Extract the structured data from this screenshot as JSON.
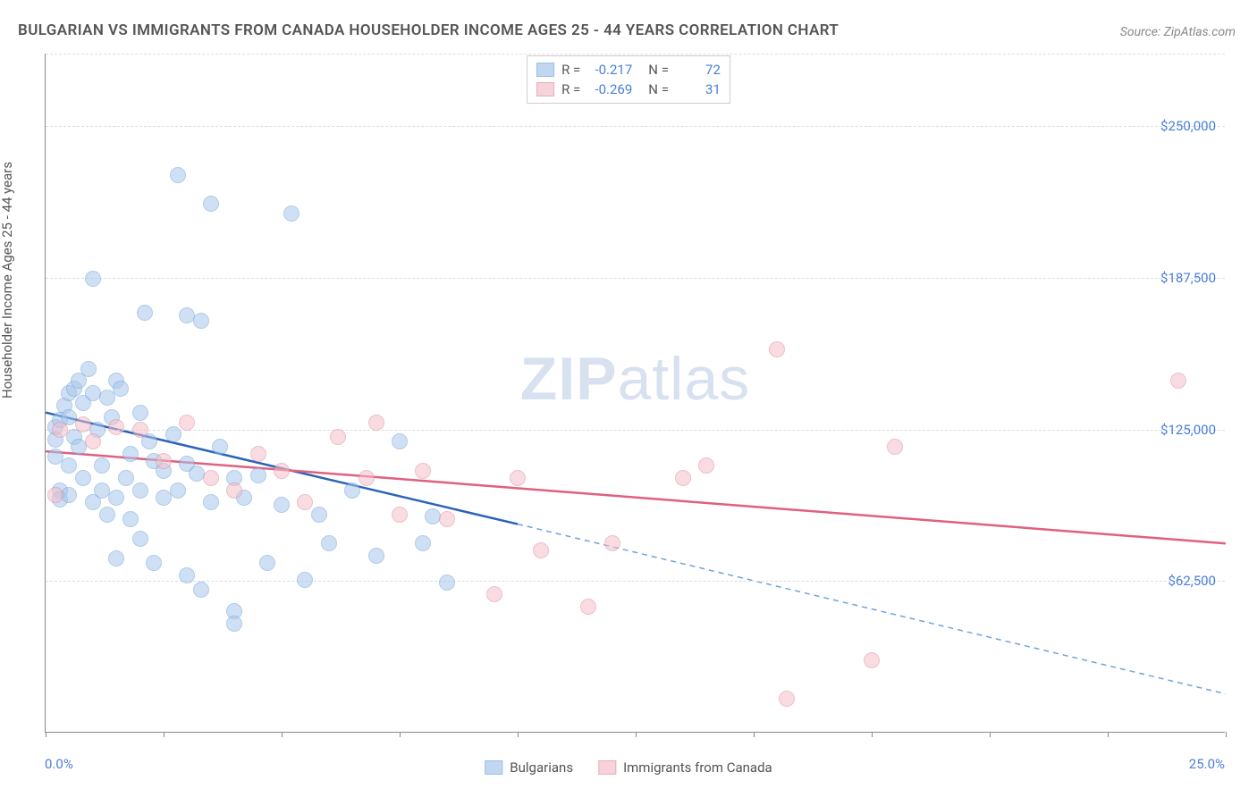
{
  "title": "BULGARIAN VS IMMIGRANTS FROM CANADA HOUSEHOLDER INCOME AGES 25 - 44 YEARS CORRELATION CHART",
  "source": "Source: ZipAtlas.com",
  "y_axis_title": "Householder Income Ages 25 - 44 years",
  "watermark_a": "ZIP",
  "watermark_b": "atlas",
  "chart": {
    "type": "scatter",
    "xlim": [
      0,
      25
    ],
    "ylim": [
      0,
      280000
    ],
    "x_tick_positions": [
      0,
      2.5,
      5,
      7.5,
      10,
      12.5,
      15,
      17.5,
      20,
      22.5,
      25
    ],
    "x_label_min": "0.0%",
    "x_label_max": "25.0%",
    "y_gridlines": [
      62500,
      125000,
      187500,
      250000
    ],
    "y_tick_labels": [
      "$62,500",
      "$125,000",
      "$187,500",
      "$250,000"
    ],
    "background_color": "#ffffff",
    "grid_color": "#dddddd",
    "axis_color": "#888888",
    "point_radius": 9,
    "point_stroke_width": 1.5,
    "series": [
      {
        "name": "Bulgarians",
        "fill": "#a8c7ec",
        "fill_opacity": 0.55,
        "stroke": "#6fa3dc",
        "r_value": "-0.217",
        "n_value": "72",
        "trend": {
          "solid": {
            "x1": 0,
            "y1": 132000,
            "x2": 10,
            "y2": 86000,
            "color": "#2a63b8",
            "width": 2.5
          },
          "dashed": {
            "x1": 10,
            "y1": 86000,
            "x2": 25,
            "y2": 16000,
            "color": "#6fa3dc",
            "width": 1.5,
            "dash": "6 5"
          }
        },
        "points": [
          [
            0.2,
            126000
          ],
          [
            0.2,
            121000
          ],
          [
            0.2,
            114000
          ],
          [
            0.3,
            129000
          ],
          [
            0.3,
            100000
          ],
          [
            0.3,
            96000
          ],
          [
            0.4,
            135000
          ],
          [
            0.5,
            140000
          ],
          [
            0.5,
            130000
          ],
          [
            0.5,
            110000
          ],
          [
            0.5,
            98000
          ],
          [
            0.6,
            142000
          ],
          [
            0.6,
            122000
          ],
          [
            0.7,
            145000
          ],
          [
            0.7,
            118000
          ],
          [
            0.8,
            136000
          ],
          [
            0.8,
            105000
          ],
          [
            0.9,
            150000
          ],
          [
            1.0,
            140000
          ],
          [
            1.0,
            187000
          ],
          [
            1.0,
            95000
          ],
          [
            1.1,
            125000
          ],
          [
            1.2,
            110000
          ],
          [
            1.2,
            100000
          ],
          [
            1.3,
            138000
          ],
          [
            1.3,
            90000
          ],
          [
            1.4,
            130000
          ],
          [
            1.5,
            145000
          ],
          [
            1.5,
            97000
          ],
          [
            1.5,
            72000
          ],
          [
            1.6,
            142000
          ],
          [
            1.7,
            105000
          ],
          [
            1.8,
            115000
          ],
          [
            1.8,
            88000
          ],
          [
            2.0,
            132000
          ],
          [
            2.0,
            100000
          ],
          [
            2.0,
            80000
          ],
          [
            2.1,
            173000
          ],
          [
            2.2,
            120000
          ],
          [
            2.3,
            112000
          ],
          [
            2.3,
            70000
          ],
          [
            2.5,
            108000
          ],
          [
            2.5,
            97000
          ],
          [
            2.7,
            123000
          ],
          [
            2.8,
            230000
          ],
          [
            2.8,
            100000
          ],
          [
            3.0,
            111000
          ],
          [
            3.0,
            172000
          ],
          [
            3.0,
            65000
          ],
          [
            3.2,
            107000
          ],
          [
            3.3,
            170000
          ],
          [
            3.3,
            59000
          ],
          [
            3.5,
            218000
          ],
          [
            3.5,
            95000
          ],
          [
            3.7,
            118000
          ],
          [
            4.0,
            105000
          ],
          [
            4.0,
            50000
          ],
          [
            4.0,
            45000
          ],
          [
            4.2,
            97000
          ],
          [
            4.5,
            106000
          ],
          [
            4.7,
            70000
          ],
          [
            5.0,
            94000
          ],
          [
            5.2,
            214000
          ],
          [
            5.5,
            63000
          ],
          [
            5.8,
            90000
          ],
          [
            6.0,
            78000
          ],
          [
            6.5,
            100000
          ],
          [
            7.0,
            73000
          ],
          [
            7.5,
            120000
          ],
          [
            8.0,
            78000
          ],
          [
            8.2,
            89000
          ],
          [
            8.5,
            62000
          ]
        ]
      },
      {
        "name": "Immigrants from Canada",
        "fill": "#f3c0cb",
        "fill_opacity": 0.55,
        "stroke": "#e38aa0",
        "r_value": "-0.269",
        "n_value": "31",
        "trend": {
          "solid": {
            "x1": 0,
            "y1": 116000,
            "x2": 25,
            "y2": 78000,
            "color": "#e0607f",
            "width": 2.5
          }
        },
        "points": [
          [
            0.2,
            98000
          ],
          [
            0.3,
            125000
          ],
          [
            0.8,
            127000
          ],
          [
            1.0,
            120000
          ],
          [
            1.5,
            126000
          ],
          [
            2.0,
            125000
          ],
          [
            2.5,
            112000
          ],
          [
            3.0,
            128000
          ],
          [
            3.5,
            105000
          ],
          [
            4.0,
            100000
          ],
          [
            4.5,
            115000
          ],
          [
            5.0,
            108000
          ],
          [
            5.5,
            95000
          ],
          [
            6.2,
            122000
          ],
          [
            6.8,
            105000
          ],
          [
            7.0,
            128000
          ],
          [
            7.5,
            90000
          ],
          [
            8.0,
            108000
          ],
          [
            8.5,
            88000
          ],
          [
            9.5,
            57000
          ],
          [
            10.0,
            105000
          ],
          [
            10.5,
            75000
          ],
          [
            11.5,
            52000
          ],
          [
            12.0,
            78000
          ],
          [
            13.5,
            105000
          ],
          [
            14.0,
            110000
          ],
          [
            15.5,
            158000
          ],
          [
            17.5,
            30000
          ],
          [
            18.0,
            118000
          ],
          [
            24.0,
            145000
          ],
          [
            15.7,
            14000
          ]
        ]
      }
    ]
  },
  "legend_top": {
    "r_label": "R =",
    "n_label": "N ="
  },
  "legend_bottom": [
    {
      "label": "Bulgarians",
      "fill": "#a8c7ec",
      "stroke": "#6fa3dc"
    },
    {
      "label": "Immigrants from Canada",
      "fill": "#f3c0cb",
      "stroke": "#e38aa0"
    }
  ]
}
